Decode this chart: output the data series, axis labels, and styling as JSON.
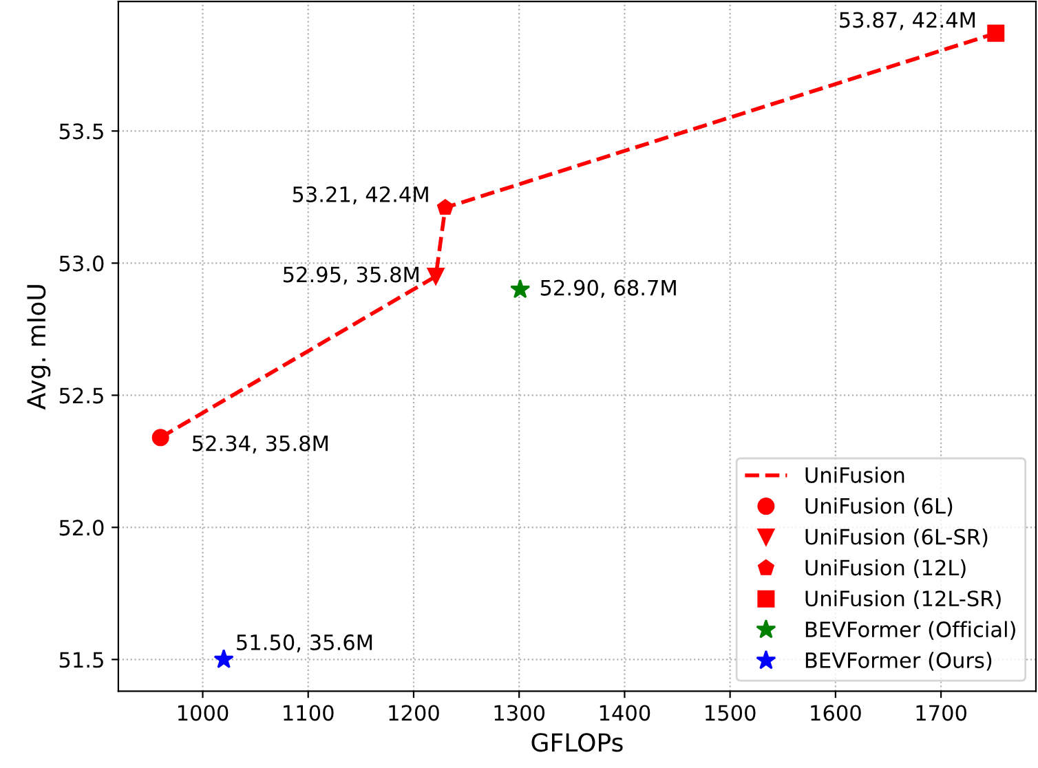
{
  "chart_data": {
    "type": "scatter",
    "xlabel": "GFLOPs",
    "ylabel": "Avg. mIoU",
    "xlim": [
      920,
      1790
    ],
    "ylim": [
      51.38,
      53.99
    ],
    "xticks": [
      1000,
      1100,
      1200,
      1300,
      1400,
      1500,
      1600,
      1700
    ],
    "yticks": [
      51.5,
      {
        "value": 52,
        "label": "52.0"
      },
      52.5,
      {
        "value": 53,
        "label": "53.0"
      },
      53.5
    ],
    "grid": true,
    "legend": "bottom right",
    "series": [
      {
        "name": "UniFusion",
        "type": "line",
        "line_style": "dashed",
        "marker": "none",
        "color": "#ff0000",
        "x": [
          960,
          1221,
          1230,
          1752
        ],
        "values": [
          52.34,
          52.95,
          53.21,
          53.87
        ]
      },
      {
        "name": "UniFusion (6L)",
        "marker": "circle",
        "color": "#ff0000",
        "x": [
          960
        ],
        "values": [
          52.34
        ]
      },
      {
        "name": "UniFusion (6L-SR)",
        "marker": "triangle",
        "color": "#ff0000",
        "x": [
          1221
        ],
        "values": [
          52.95
        ]
      },
      {
        "name": "UniFusion (12L)",
        "color": "#ff0000",
        "x": [
          1230
        ],
        "values": [
          53.21
        ]
      },
      {
        "name": "UniFusion (12L-SR)",
        "marker": "square",
        "color": "#ff0000",
        "x": [
          1752
        ],
        "values": [
          53.87
        ]
      },
      {
        "name": "BEVFormer (Official)",
        "marker": "star",
        "color": "#008000",
        "x": [
          1301
        ],
        "values": [
          52.9
        ]
      },
      {
        "name": "BEVFormer (Ours)",
        "marker": "star",
        "color": "#0000ff",
        "x": [
          1020
        ],
        "values": [
          51.5
        ]
      }
    ],
    "annotations": [
      {
        "text": "52.34, 35.8M",
        "x": 960,
        "y": 52.34
      },
      {
        "text": "52.95, 35.8M",
        "x": 1221,
        "y": 52.95
      },
      {
        "text": "53.21, 42.4M",
        "x": 1230,
        "y": 53.21
      },
      {
        "text": "53.87, 42.4M",
        "x": 1752,
        "y": 53.87
      },
      {
        "text": "52.90, 68.7M",
        "x": 1301,
        "y": 52.9
      },
      {
        "text": "51.50, 35.6M",
        "x": 1020,
        "y": 51.5
      }
    ]
  }
}
